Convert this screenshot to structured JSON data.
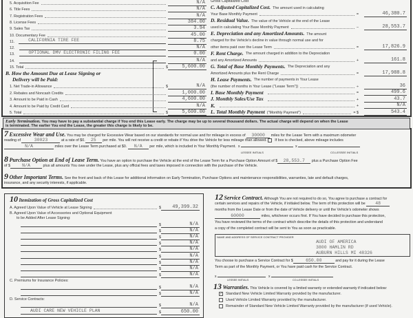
{
  "section_a_items": [
    {
      "label": "5. Acquisition Fee",
      "value": "N/A"
    },
    {
      "label": "6. Title Fees",
      "value": "N/A"
    },
    {
      "label": "7. Registration Fees",
      "value": "N/A"
    },
    {
      "label": "8. License Fees",
      "value": "384.00"
    },
    {
      "label": "9. Sales Tax",
      "value": "3.94"
    },
    {
      "label": "10. Documentary Fee",
      "value": "45.00"
    },
    {
      "label": "11.",
      "desc": "CALIFORNIA TIRE FEE",
      "value": "8.75"
    },
    {
      "label": "12.",
      "desc": "",
      "value": "N/A"
    },
    {
      "label": "13.",
      "desc": "OPTIONAL DMV ELECTRONIC FILING FEE",
      "value": "0.00"
    },
    {
      "label": "14.",
      "desc": "",
      "value": "N/A"
    },
    {
      "label": "15. Total",
      "value": "5,600.00",
      "dollar": "$"
    }
  ],
  "section_b": {
    "title_line1": "B. How the Amount Due at Lease Signing or",
    "title_line2": "Delivery will be Paid:",
    "items": [
      {
        "label": "1. Net Trade-in Allowance",
        "value": "N/A",
        "dollar": "$"
      },
      {
        "label": "2. Rebates and Noncash Credits",
        "value": "1,000.00"
      },
      {
        "label": "3. Amount to be Paid in Cash",
        "value": "4,600.00"
      },
      {
        "label": "4. Amount to be Paid by Credit Card",
        "value": "N/A"
      },
      {
        "label": "5. Total",
        "value": "5,600.00",
        "dollar": "$"
      }
    ]
  },
  "right_top": [
    {
      "lines": [
        [
          "",
          "Gross Capitalized Cost"
        ]
      ],
      "op": "",
      "value": ""
    },
    {
      "lines": [
        [
          "C. Adjusted Capitalized Cost.",
          "The amount used in calculating"
        ],
        [
          "",
          "Your Base Monthly Payment"
        ]
      ],
      "op": "=",
      "value": "46,380.7"
    },
    {
      "lines": [
        [
          "D. Residual Value.",
          "The value of the Vehicle at the end of the Lease"
        ],
        [
          "",
          "used in calculating Your Base Monthly Payment"
        ]
      ],
      "op": "–",
      "value": "28,553.7"
    },
    {
      "lines": [
        [
          "E. Depreciation and any Amortized Amounts.",
          "The amount"
        ],
        [
          "",
          "charged for the Vehicle's decline in value through normal use and for"
        ],
        [
          "",
          "other items paid over the Lease Term"
        ]
      ],
      "op": "=",
      "value": "17,826.9"
    },
    {
      "lines": [
        [
          "F. Rent Charge.",
          "The amount charged in addition to the Depreciation"
        ],
        [
          "",
          "and any Amortized Amounts"
        ]
      ],
      "op": "+",
      "value": "161.8"
    },
    {
      "lines": [
        [
          "G. Total of Base Monthly Payments.",
          "The Depreciation and any"
        ],
        [
          "",
          "Amortized Amounts plus the Rent Charge"
        ]
      ],
      "op": "=",
      "value": "17,988.8"
    },
    {
      "lines": [
        [
          "H. Lease Payments.",
          "The number of payments in Your Lease"
        ],
        [
          "",
          "(the number of months in Your Lease (\"Lease Term\"))"
        ]
      ],
      "op": "÷",
      "value": "36"
    },
    {
      "lines": [
        [
          "I. Base Monthly Payment",
          ""
        ]
      ],
      "op": "=",
      "value": "499.6"
    },
    {
      "lines": [
        [
          "J. Monthly Sales/Use Tax",
          ""
        ]
      ],
      "op": "+",
      "value": "43.7"
    },
    {
      "lines": [
        [
          "K.",
          ""
        ]
      ],
      "op": "+",
      "value": "N/A"
    },
    {
      "lines": [
        [
          "L. Total Monthly Payment",
          "(\"Monthly Payment\")"
        ]
      ],
      "op": "= $",
      "value": "543.4"
    }
  ],
  "early_termination": {
    "title": "Early Termination.",
    "text1": "You may have to pay a substantial charge if You end this Lease early. The charge may be up to several thousand dollars. The actual charge will depend on when the Lease",
    "text2": "is terminated. The earlier You end the Lease, the greater this charge is likely to be."
  },
  "s7": {
    "num": "7",
    "title": "Excessive Wear and Use.",
    "t1": "You may be charged for Excessive Wear based on our standards for normal use and for mileage in excess of",
    "miles": "30000",
    "t2": "miles for the Lease Term with a maximum odometer",
    "t3": "reading of",
    "odometer": "30023",
    "t4": "at a rate of $0.",
    "rate": "25",
    "t5": "per mile. You will not receive a credit or rebate if You drive the Vehicle for less mileage than allowed.",
    "t6": "If box is checked, above mileage includes",
    "extra_miles": "N/A",
    "t7": "miles over the Lease Term purchased at $0.",
    "extra_rate": "N/A",
    "t8": "per mile, which is included in Your Monthly Payment.",
    "lessee": "LESSEE INITIALS",
    "colessee": "CO-LESSEE INITIALS"
  },
  "s8": {
    "num": "8",
    "title": "Purchase Option at End of Lease Term.",
    "t1": "You have an option to purchase the Vehicle at the end of the Lease Term for a Purchase Option Amount of $",
    "amount": "28,553.7",
    "t2": "plus a Purchase Option Fee",
    "t3": "of $",
    "fee": "N/A",
    "t4": "plus all amounts You owe under the Lease, plus any official fees and taxes imposed in connection with the purchase of the Vehicle."
  },
  "s9": {
    "num": "9",
    "title": "Other Important Terms.",
    "t1": "See the front and back of this Lease for additional information on Early Termination, Purchase Options and maintenance responsibilities, warranties, late and default charges,",
    "t2": "insurance, and any security interests, if applicable."
  },
  "s10": {
    "num": "10",
    "title": "Itemization of Gross Capitalized Cost",
    "a_label": "A. Agreed Upon Value of Vehicle at Lease Signing",
    "a_value": "49,399.32",
    "b_label1": "B. Agreed Upon Value of Accessories and Optional Equipment",
    "b_label2": "to be Added After Lease Signing:",
    "b_values": [
      "N/A",
      "N/A",
      "N/A",
      "N/A",
      "N/A",
      "N/A",
      "N/A",
      "N/A",
      "N/A"
    ],
    "c_label": "C. Premiums for Insurance Policies:",
    "c_values": [
      "N/A",
      "N/A"
    ],
    "d_label": "D. Service Contracts:",
    "d_values": [
      "N/A"
    ],
    "d_item": "AUDI CARE NEW VEHICLE PLAN",
    "d_item_value": "650.00"
  },
  "s12": {
    "num": "12",
    "title": "Service Contract.",
    "t1": "Although You are not required to do so, You agree to purchase a contract for",
    "t2": "certain services and repairs of the Vehicle, if initialed below. The term of this protection will be",
    "months": "48",
    "t3": "months from the Lease Date or from the date of Vehicle delivery or until the Vehicle's odometer shows",
    "miles": "60000",
    "t4": "miles, whichever occurs first. If You have decided to purchase this protection,",
    "t5": "You have reviewed the terms of the contract which describe the details of this protection and understand",
    "t6": "a copy of the completed contract will be sent to You as soon as practicable.",
    "provider_label": "NAME AND ADDRESS OF SERVICE CONTRACT PROVIDER",
    "provider1": "AUDI OF AMERICA",
    "provider2": "3800 HAMLIN RD",
    "provider3": "AUBURN HILLS    MI   48326",
    "t7": "You choose to purchase a Service Contract for $",
    "price": "650.00",
    "t8": "and pay for it during the Lease",
    "t9": "Term as part of the Monthly Payment, or You have paid cash for the Service Contract.",
    "lessee": "LESSEE INITIALS",
    "colessee": "CO-LESSEE INITIALS"
  },
  "s13": {
    "num": "13",
    "title": "Warranties.",
    "t1": "This Vehicle is covered by a limited warranty or extended warranty if indicated below:",
    "options": [
      {
        "label": "Standard New Vehicle Limited Warranty provided by the manufacturer.",
        "checked": true
      },
      {
        "label": "Used Vehicle Limited Warranty provided by the manufacturer.",
        "checked": false
      },
      {
        "label": "Remainder of Standard New Vehicle Limited Warranty provided by the manufacturer (if used Vehicle).",
        "checked": false
      }
    ]
  }
}
